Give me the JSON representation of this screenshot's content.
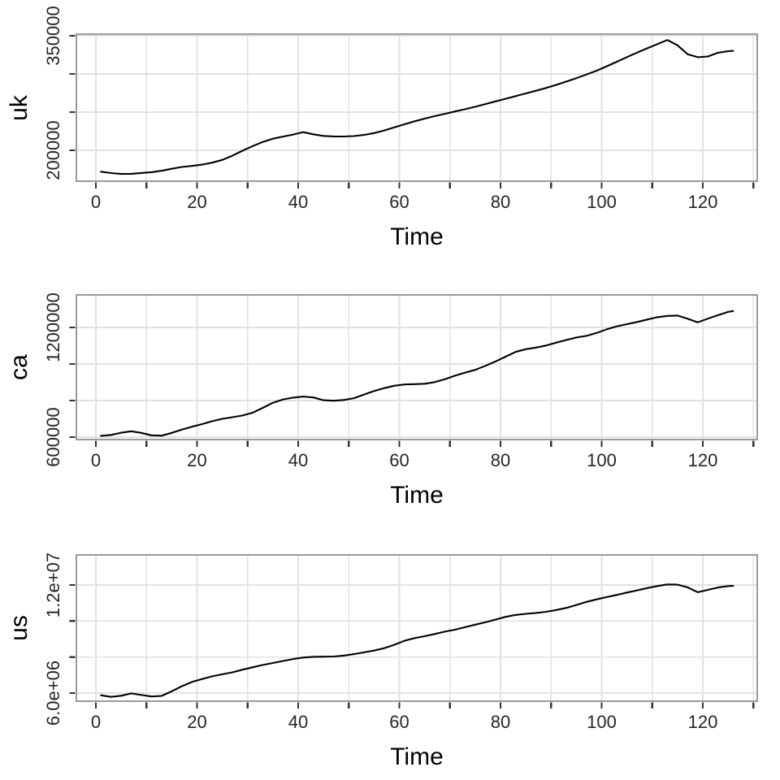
{
  "colors": {
    "background": "#ffffff",
    "grid": "#e2e2e2",
    "panel_border": "#9a9a9a",
    "tick_mark": "#333333",
    "tick_label_text": "#262626",
    "axis_title_text": "#000000",
    "series_line": "#000000"
  },
  "chart_data": [
    {
      "type": "line",
      "title": "",
      "ylabel": "uk",
      "xlabel": "Time",
      "legend": "none",
      "grid": "on",
      "xlim": [
        -3.9,
        130.8
      ],
      "ylim": [
        159700,
        352100
      ],
      "x_axis_ticks": [
        0,
        10,
        20,
        30,
        40,
        50,
        60,
        70,
        80,
        90,
        100,
        110,
        120,
        130
      ],
      "x_tick_labels": [
        {
          "value": 0,
          "text": "0"
        },
        {
          "value": 20,
          "text": "20"
        },
        {
          "value": 40,
          "text": "40"
        },
        {
          "value": 60,
          "text": "60"
        },
        {
          "value": 80,
          "text": "80"
        },
        {
          "value": 100,
          "text": "100"
        },
        {
          "value": 120,
          "text": "120"
        }
      ],
      "y_ticks": [
        200000,
        250000,
        300000,
        350000
      ],
      "y_tick_labels": [
        {
          "value": 350000,
          "text": "350000"
        },
        {
          "value": 200000,
          "text": "200000"
        }
      ],
      "x": [
        1,
        3,
        5,
        7,
        9,
        11,
        13,
        15,
        17,
        19,
        21,
        23,
        25,
        27,
        29,
        31,
        33,
        35,
        37,
        39,
        41,
        43,
        45,
        47,
        49,
        51,
        53,
        55,
        57,
        59,
        61,
        63,
        65,
        67,
        69,
        71,
        73,
        75,
        77,
        79,
        81,
        83,
        85,
        87,
        89,
        91,
        93,
        95,
        97,
        99,
        101,
        103,
        105,
        107,
        109,
        111,
        113,
        115,
        117,
        119,
        121,
        123,
        125,
        126
      ],
      "values": [
        172000,
        170200,
        169000,
        169300,
        170300,
        171400,
        173200,
        175800,
        178200,
        179600,
        181300,
        183800,
        187500,
        193000,
        199500,
        205500,
        211000,
        215200,
        218000,
        220600,
        223800,
        221000,
        218800,
        218200,
        218100,
        218600,
        220100,
        222600,
        226000,
        230000,
        234000,
        238000,
        241500,
        244800,
        247800,
        250800,
        253800,
        257000,
        260500,
        264000,
        267500,
        271000,
        274500,
        278000,
        281600,
        285600,
        290000,
        294500,
        299300,
        304300,
        310000,
        316000,
        322000,
        328000,
        333500,
        339000,
        344500,
        337500,
        325800,
        321900,
        322900,
        327800,
        329800,
        330200
      ]
    },
    {
      "type": "line",
      "title": "",
      "ylabel": "ca",
      "xlabel": "Time",
      "legend": "none",
      "grid": "on",
      "xlim": [
        -3.9,
        130.8
      ],
      "ylim": [
        586700,
        1377800
      ],
      "x_axis_ticks": [
        0,
        10,
        20,
        30,
        40,
        50,
        60,
        70,
        80,
        90,
        100,
        110,
        120,
        130
      ],
      "x_tick_labels": [
        {
          "value": 0,
          "text": "0"
        },
        {
          "value": 20,
          "text": "20"
        },
        {
          "value": 40,
          "text": "40"
        },
        {
          "value": 60,
          "text": "60"
        },
        {
          "value": 80,
          "text": "80"
        },
        {
          "value": 100,
          "text": "100"
        },
        {
          "value": 120,
          "text": "120"
        }
      ],
      "y_ticks": [
        600000,
        800000,
        1000000,
        1200000
      ],
      "y_tick_labels": [
        {
          "value": 1200000,
          "text": "1200000"
        },
        {
          "value": 600000,
          "text": "600000"
        }
      ],
      "x": [
        1,
        3,
        5,
        7,
        9,
        11,
        13,
        15,
        17,
        19,
        21,
        23,
        25,
        27,
        29,
        31,
        33,
        35,
        37,
        39,
        41,
        43,
        45,
        47,
        49,
        51,
        53,
        55,
        57,
        59,
        61,
        63,
        65,
        67,
        69,
        71,
        73,
        75,
        77,
        79,
        81,
        83,
        85,
        87,
        89,
        91,
        93,
        95,
        97,
        99,
        101,
        103,
        105,
        107,
        109,
        111,
        113,
        115,
        117,
        119,
        121,
        123,
        125,
        126
      ],
      "values": [
        607000,
        612000,
        624000,
        632000,
        623000,
        610000,
        608000,
        623000,
        641000,
        657000,
        671000,
        687000,
        700000,
        709000,
        718000,
        734000,
        760000,
        788000,
        806000,
        816000,
        822000,
        817000,
        802000,
        799000,
        803000,
        813000,
        833000,
        852000,
        868000,
        881000,
        888000,
        890000,
        892000,
        901000,
        917000,
        936000,
        953000,
        968000,
        990000,
        1014000,
        1040000,
        1066000,
        1081000,
        1090000,
        1101000,
        1117000,
        1131000,
        1145000,
        1154000,
        1170000,
        1190000,
        1206000,
        1218000,
        1230000,
        1243000,
        1256000,
        1263000,
        1265000,
        1248000,
        1228000,
        1248000,
        1267000,
        1285000,
        1290000
      ]
    },
    {
      "type": "line",
      "title": "",
      "ylabel": "us",
      "xlabel": "Time",
      "legend": "none",
      "grid": "on",
      "xlim": [
        -3.9,
        130.8
      ],
      "ylim": [
        5549000,
        13669000
      ],
      "x_axis_ticks": [
        0,
        10,
        20,
        30,
        40,
        50,
        60,
        70,
        80,
        90,
        100,
        110,
        120,
        130
      ],
      "x_tick_labels": [
        {
          "value": 0,
          "text": "0"
        },
        {
          "value": 20,
          "text": "20"
        },
        {
          "value": 40,
          "text": "40"
        },
        {
          "value": 60,
          "text": "60"
        },
        {
          "value": 80,
          "text": "80"
        },
        {
          "value": 100,
          "text": "100"
        },
        {
          "value": 120,
          "text": "120"
        }
      ],
      "y_ticks": [
        6000000,
        8000000,
        10000000,
        12000000
      ],
      "y_tick_labels": [
        {
          "value": 12000000,
          "text": "1.2e+07"
        },
        {
          "value": 6000000,
          "text": "6.0e+06"
        }
      ],
      "x": [
        1,
        3,
        5,
        7,
        9,
        11,
        13,
        15,
        17,
        19,
        21,
        23,
        25,
        27,
        29,
        31,
        33,
        35,
        37,
        39,
        41,
        43,
        45,
        47,
        49,
        51,
        53,
        55,
        57,
        59,
        61,
        63,
        65,
        67,
        69,
        71,
        73,
        75,
        77,
        79,
        81,
        83,
        85,
        87,
        89,
        91,
        93,
        95,
        97,
        99,
        101,
        103,
        105,
        107,
        109,
        111,
        113,
        115,
        117,
        119,
        121,
        123,
        125,
        126
      ],
      "values": [
        5880000,
        5790000,
        5850000,
        5980000,
        5890000,
        5810000,
        5840000,
        6100000,
        6380000,
        6620000,
        6780000,
        6930000,
        7040000,
        7150000,
        7300000,
        7430000,
        7560000,
        7670000,
        7780000,
        7890000,
        7970000,
        8010000,
        8020000,
        8030000,
        8080000,
        8160000,
        8260000,
        8360000,
        8490000,
        8680000,
        8900000,
        9050000,
        9160000,
        9280000,
        9410000,
        9520000,
        9660000,
        9800000,
        9930000,
        10080000,
        10230000,
        10340000,
        10400000,
        10450000,
        10510000,
        10610000,
        10730000,
        10890000,
        11060000,
        11200000,
        11330000,
        11450000,
        11580000,
        11700000,
        11830000,
        11940000,
        12030000,
        12020000,
        11870000,
        11600000,
        11730000,
        11860000,
        11940000,
        11950000
      ]
    }
  ]
}
